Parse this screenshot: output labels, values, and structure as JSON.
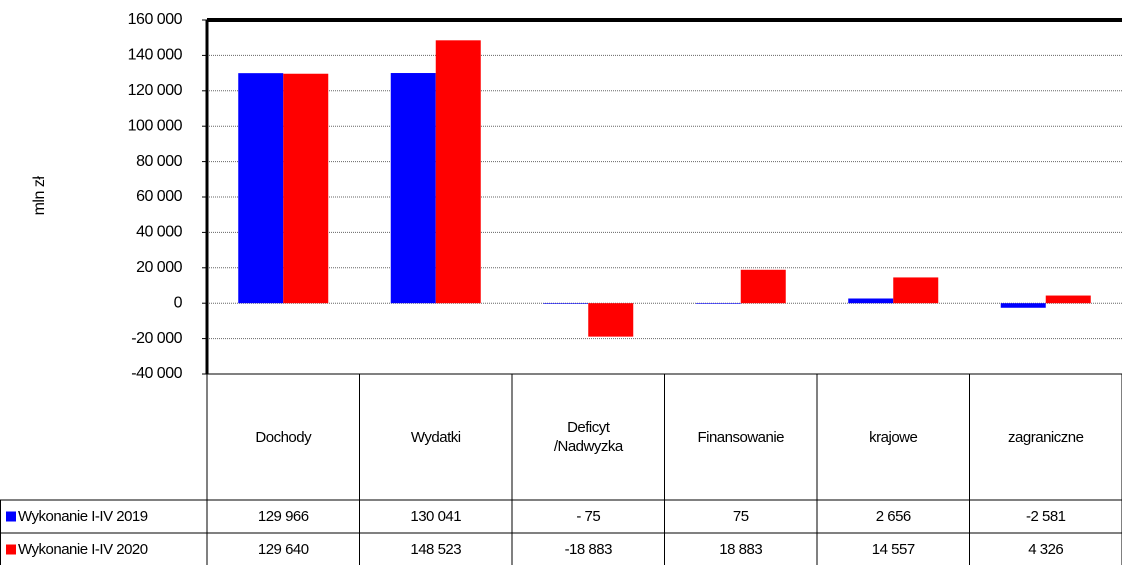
{
  "chart_data": {
    "type": "bar",
    "y_label": "mln zł",
    "categories": [
      "Dochody",
      "Wydatki",
      "Deficyt /Nadwyzka",
      "Finansowanie",
      "krajowe",
      "zagraniczne"
    ],
    "series": [
      {
        "name": "Wykonanie I-IV 2019",
        "color": "#0000ff",
        "values": [
          129966,
          130041,
          -75,
          75,
          2656,
          -2581
        ],
        "value_labels": [
          "129 966",
          "130 041",
          "- 75",
          "75",
          "2 656",
          "-2 581"
        ]
      },
      {
        "name": "Wykonanie I-IV 2020",
        "color": "#ff0000",
        "values": [
          129640,
          148523,
          -18883,
          18883,
          14557,
          4326
        ],
        "value_labels": [
          "129 640",
          "148 523",
          "-18 883",
          "18 883",
          "14 557",
          "4 326"
        ]
      }
    ],
    "ylim": [
      -40000,
      160000
    ],
    "yticks": [
      {
        "value": -40000,
        "label": "-40 000"
      },
      {
        "value": -20000,
        "label": "-20 000"
      },
      0,
      {
        "value": 20000,
        "label": "20 000"
      },
      {
        "value": 40000,
        "label": "40 000"
      },
      {
        "value": 60000,
        "label": "60 000"
      },
      {
        "value": 80000,
        "label": "80 000"
      },
      {
        "value": 100000,
        "label": "100 000"
      },
      {
        "value": 120000,
        "label": "120 000"
      },
      {
        "value": 140000,
        "label": "140 000"
      },
      {
        "value": 160000,
        "label": "160 000"
      }
    ],
    "grid": true
  }
}
